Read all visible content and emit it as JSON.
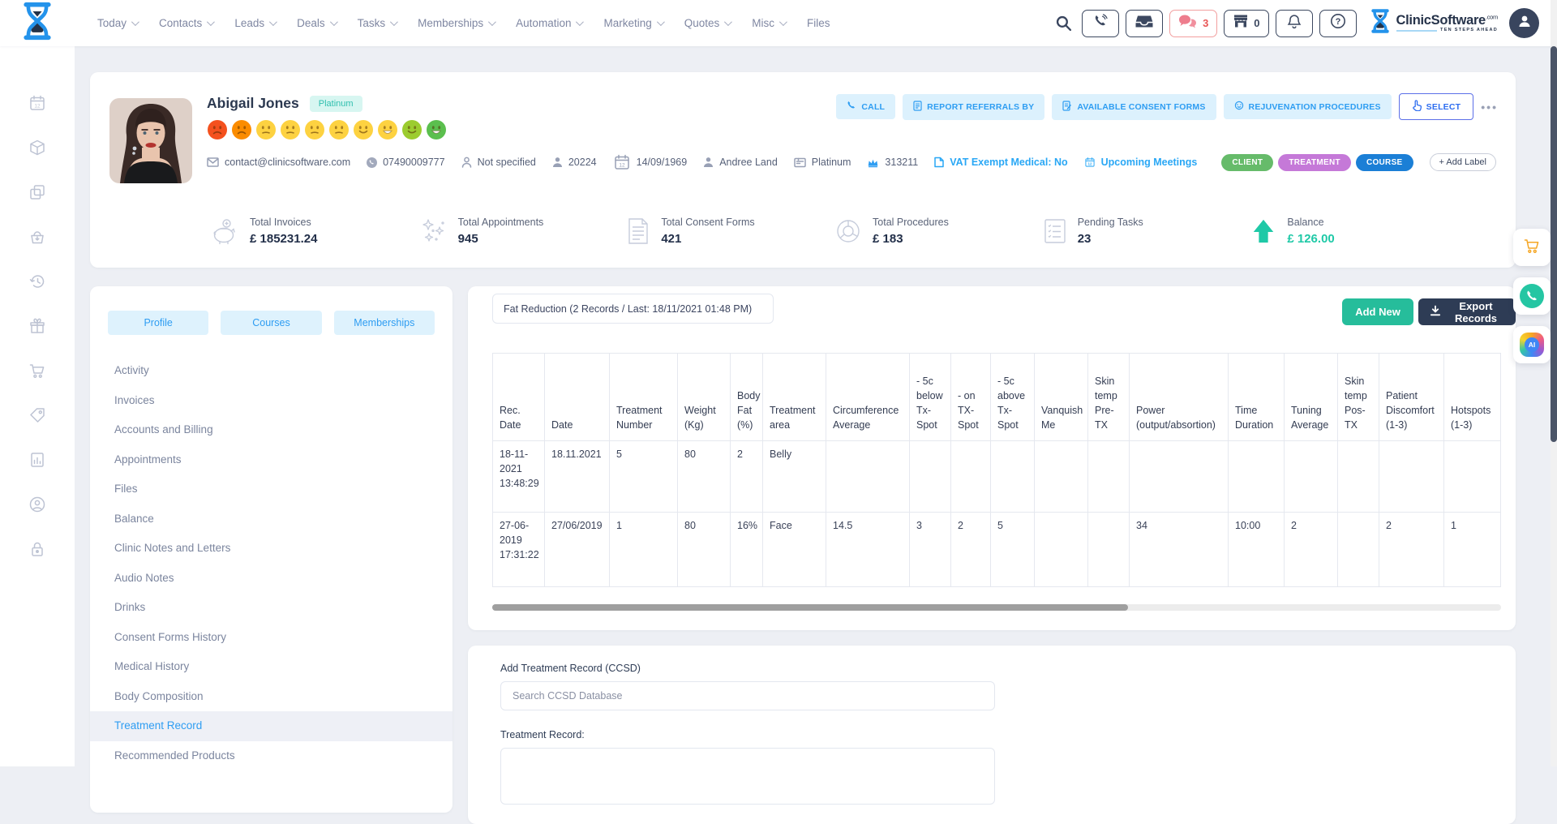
{
  "topbar": {
    "nav": [
      {
        "label": "Today",
        "chevron": true
      },
      {
        "label": "Contacts",
        "chevron": true
      },
      {
        "label": "Leads",
        "chevron": true
      },
      {
        "label": "Deals",
        "chevron": true
      },
      {
        "label": "Tasks",
        "chevron": true
      },
      {
        "label": "Memberships",
        "chevron": true
      },
      {
        "label": "Automation",
        "chevron": true
      },
      {
        "label": "Marketing",
        "chevron": true
      },
      {
        "label": "Quotes",
        "chevron": true
      },
      {
        "label": "Misc",
        "chevron": true
      },
      {
        "label": "Files",
        "chevron": false
      }
    ],
    "chat_count": "3",
    "store_count": "0",
    "brand": {
      "name": "ClinicSoftware",
      "tld": ".com",
      "tagline": "TEN STEPS AHEAD"
    }
  },
  "left_rail_icons": [
    "calendar-icon",
    "package-icon",
    "copy-icon",
    "basket-icon",
    "history-icon",
    "gift-icon",
    "cart-icon",
    "price-tag-icon",
    "report-icon",
    "account-icon",
    "lock-icon"
  ],
  "patient": {
    "name": "Abigail Jones",
    "tier": "Platinum",
    "satisfaction": [
      {
        "color": "#f4511e",
        "mood": "frown"
      },
      {
        "color": "#fb8c00",
        "mood": "frown"
      },
      {
        "color": "#fdd241",
        "mood": "meh"
      },
      {
        "color": "#fdd241",
        "mood": "meh"
      },
      {
        "color": "#fdd241",
        "mood": "meh"
      },
      {
        "color": "#fdd241",
        "mood": "meh"
      },
      {
        "color": "#fdd241",
        "mood": "smile"
      },
      {
        "color": "#fdd241",
        "mood": "grin"
      },
      {
        "color": "#9ccc2f",
        "mood": "smile"
      },
      {
        "color": "#5bbf4e",
        "mood": "grin"
      }
    ],
    "contact_items": [
      {
        "icon": "envelope-icon",
        "text": "contact@clinicsoftware.com",
        "accent": false,
        "clickable": true
      },
      {
        "icon": "phone-icon",
        "text": "07490009777",
        "accent": false,
        "clickable": true
      },
      {
        "icon": "person-outline-icon",
        "text": "Not specified",
        "accent": false,
        "clickable": false
      },
      {
        "icon": "person-icon",
        "text": "20224",
        "accent": false,
        "clickable": false
      },
      {
        "icon": "calendar-icon",
        "text": "14/09/1969",
        "accent": false,
        "clickable": false
      },
      {
        "icon": "person-icon",
        "text": "Andree Land",
        "accent": false,
        "clickable": false
      },
      {
        "icon": "id-card-icon",
        "text": "Platinum",
        "accent": false,
        "clickable": false
      },
      {
        "icon": "crown-icon",
        "text": "313211",
        "accent": false,
        "clickable": false
      },
      {
        "icon": "file-icon",
        "text": "VAT Exempt Medical: No",
        "accent": true,
        "clickable": true
      },
      {
        "icon": "calendar-check-icon",
        "text": "Upcoming Meetings",
        "accent": true,
        "clickable": true
      }
    ],
    "labels": [
      {
        "text": "CLIENT",
        "color": "#66bb6a"
      },
      {
        "text": "TREATMENT",
        "color": "#c579d8"
      },
      {
        "text": "COURSE",
        "color": "#1b7fd6"
      }
    ],
    "add_label": "+ Add Label",
    "actions": {
      "call": "CALL",
      "report": "REPORT REFERRALS BY",
      "consent": "AVAILABLE CONSENT FORMS",
      "rejuvenation": "REJUVENATION PROCEDURES",
      "select": "SELECT",
      "more": "•••"
    }
  },
  "stats": [
    {
      "icon": "piggy-bank-icon",
      "label": "Total Invoices",
      "value": "£ 185231.24"
    },
    {
      "icon": "stars-icon",
      "label": "Total Appointments",
      "value": "945"
    },
    {
      "icon": "document-icon",
      "label": "Total Consent Forms",
      "value": "421"
    },
    {
      "icon": "donut-chart-icon",
      "label": "Total Procedures",
      "value": "£ 183"
    },
    {
      "icon": "task-list-icon",
      "label": "Pending Tasks",
      "value": "23"
    },
    {
      "icon": "arrow-up-icon",
      "label": "Balance",
      "value": "£ 126.00",
      "accent": "#1fc9a7"
    }
  ],
  "sidebar": {
    "tabs": [
      "Profile",
      "Courses",
      "Memberships"
    ],
    "items": [
      {
        "label": "Activity",
        "active": false
      },
      {
        "label": "Invoices",
        "active": false
      },
      {
        "label": "Accounts and Billing",
        "active": false
      },
      {
        "label": "Appointments",
        "active": false
      },
      {
        "label": "Files",
        "active": false
      },
      {
        "label": "Balance",
        "active": false
      },
      {
        "label": "Clinic Notes and Letters",
        "active": false
      },
      {
        "label": "Audio Notes",
        "active": false
      },
      {
        "label": "Drinks",
        "active": false
      },
      {
        "label": "Consent Forms History",
        "active": false
      },
      {
        "label": "Medical History",
        "active": false
      },
      {
        "label": "Body Composition",
        "active": false
      },
      {
        "label": "Treatment Record",
        "active": true
      },
      {
        "label": "Recommended Products",
        "active": false
      }
    ]
  },
  "records": {
    "filter": "Fat Reduction (2 Records / Last: 18/11/2021 01:48 PM)",
    "add_new": "Add New",
    "export": "Export Records",
    "table": {
      "headers": [
        "Rec. Date",
        "Date",
        "Treatment Number",
        "Weight (Kg)",
        "Body Fat (%)",
        "Treatment area",
        "Circumference Average",
        "- 5c below Tx- Spot",
        "- on TX- Spot",
        "- 5c above Tx- Spot",
        "Vanquish Me",
        "Skin temp Pre- TX",
        "Power (output/absortion)",
        "Time Duration",
        "Tuning Average",
        "Skin temp Pos- TX",
        "Patient Discomfort (1-3)",
        "Hotspots (1-3)"
      ],
      "rows": [
        [
          "18-11-2021 13:48:29",
          "18.11.2021",
          "5",
          "80",
          "2",
          "Belly",
          "",
          "",
          "",
          "",
          "",
          "",
          "",
          "",
          "",
          "",
          "",
          ""
        ],
        [
          "27-06-2019 17:31:22",
          "27/06/2019",
          "1",
          "80",
          "16%",
          "Face",
          "14.5",
          "3",
          "2",
          "5",
          "",
          "",
          "34",
          "10:00",
          "2",
          "",
          "2",
          "1"
        ]
      ]
    }
  },
  "ccsd": {
    "title": "Add Treatment Record (CCSD)",
    "search_placeholder": "Search CCSD Database",
    "record_label": "Treatment Record:"
  },
  "floating_buttons": [
    {
      "icon": "cart-icon"
    },
    {
      "icon": "whatsapp-phone-icon"
    },
    {
      "icon": "ai-icon"
    }
  ]
}
